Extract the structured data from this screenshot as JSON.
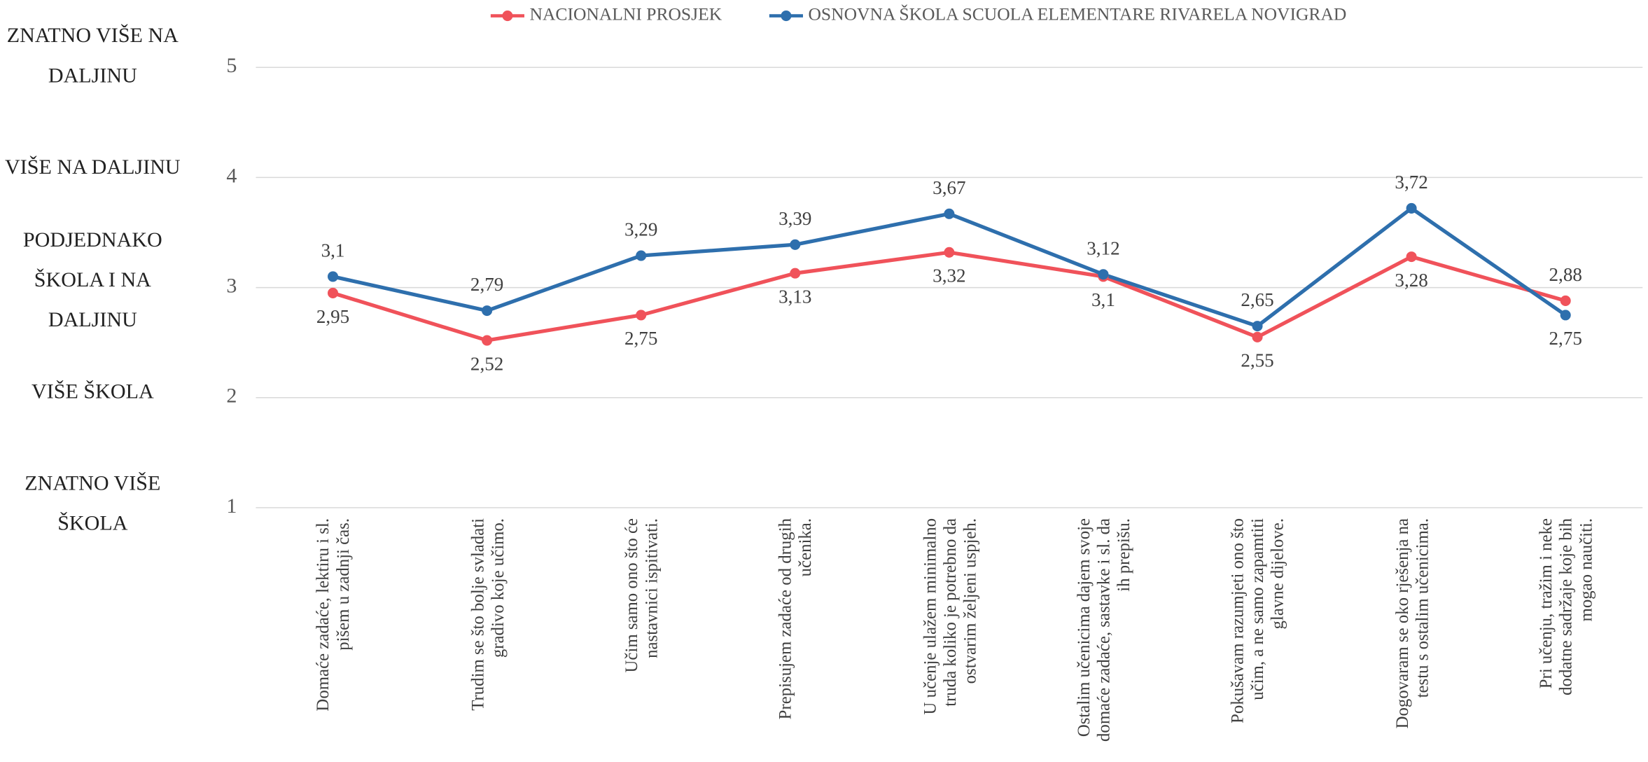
{
  "chart_data": {
    "type": "line",
    "categories": [
      "Domaće zadaće, lektiru i sl. pišem u zadnji čas.",
      "Trudim se što bolje svladati gradivo koje učimo.",
      "Učim samo ono što će nastavnici ispitivati.",
      "Prepisujem zadaće od drugih učenika.",
      "U učenje ulažem minimalno truda koliko je potrebno da ostvarim željeni uspjeh.",
      "Ostalim učenicima dajem svoje domaće zadaće, sastavke i sl. da ih prepišu.",
      "Pokušavam razumjeti ono što učim, a ne samo zapamtiti glavne dijelove.",
      "Dogovaram se oko rješenja na testu s ostalim učenicima.",
      "Pri učenju, tražim i neke dodatne sadržaje koje bih mogao naučiti."
    ],
    "series": [
      {
        "name": "NACIONALNI PROSJEK",
        "color": "#f0525a",
        "values": [
          2.95,
          2.52,
          2.75,
          3.13,
          3.32,
          3.1,
          2.55,
          3.28,
          2.88
        ],
        "value_labels": [
          "2,95",
          "2,52",
          "2,75",
          "3,13",
          "3,32",
          "3,1",
          "2,55",
          "3,28",
          "2,88"
        ]
      },
      {
        "name": "OSNOVNA ŠKOLA SCUOLA ELEMENTARE RIVARELA NOVIGRAD",
        "color": "#2e6fad",
        "values": [
          3.1,
          2.79,
          3.29,
          3.39,
          3.67,
          3.12,
          2.65,
          3.72,
          2.75
        ],
        "value_labels": [
          "3,1",
          "2,79",
          "3,29",
          "3,39",
          "3,67",
          "3,12",
          "2,65",
          "3,72",
          "2,75"
        ]
      }
    ],
    "ylim": [
      1,
      5
    ],
    "yticks": [
      1,
      2,
      3,
      4,
      5
    ],
    "grid": true,
    "legend": "top",
    "scale_labels": [
      "ZNATNO VIŠE NA DALJINU",
      "VIŠE NA DALJINU",
      "PODJEDNAKO ŠKOLA I NA DALJINU",
      "VIŠE ŠKOLA",
      "ZNATNO VIŠE ŠKOLA"
    ]
  }
}
